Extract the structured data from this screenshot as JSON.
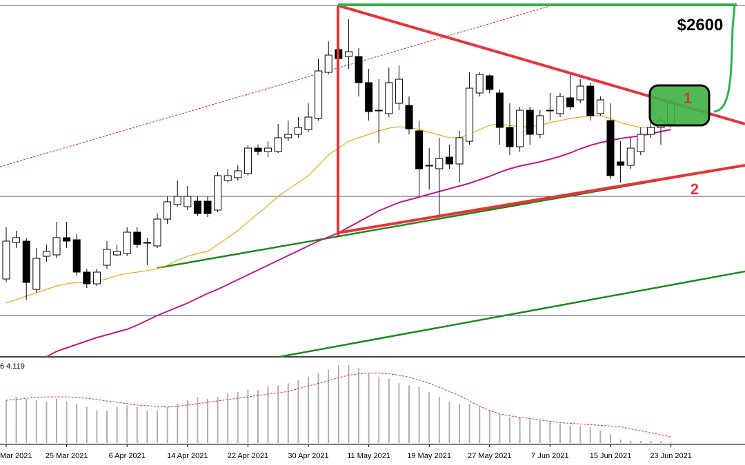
{
  "chart_data": {
    "type": "candlestick",
    "categories": [
      "Mar 2021",
      null,
      null,
      null,
      null,
      null,
      "25 Mar 2021",
      null,
      null,
      null,
      null,
      null,
      "6 Apr 2021",
      null,
      null,
      null,
      null,
      null,
      "14 Apr 2021",
      null,
      null,
      null,
      null,
      null,
      "22 Apr 2021",
      null,
      null,
      null,
      null,
      null,
      "30 Apr 2021",
      null,
      null,
      null,
      null,
      null,
      "11 May 2021",
      null,
      null,
      null,
      null,
      null,
      "19 May 2021",
      null,
      null,
      null,
      null,
      null,
      "27 May 2021",
      null,
      null,
      null,
      null,
      null,
      "7 Jun 2021",
      null,
      null,
      null,
      null,
      null,
      "15 Jun 2021",
      null,
      null,
      null,
      null,
      null,
      "23 Jun 2021"
    ],
    "open": [
      1130,
      1660,
      1680,
      980,
      1460,
      1480,
      1730,
      1700,
      1230,
      1060,
      1330,
      1480,
      1500,
      1810,
      1660,
      1610,
      2000,
      2210,
      2180,
      2260,
      2260,
      2130,
      2560,
      2600,
      2660,
      3030,
      2980,
      2980,
      3180,
      3230,
      3300,
      3460,
      4130,
      4460,
      4360,
      4360,
      3980,
      3580,
      3530,
      3680,
      3650,
      3280,
      2780,
      2730,
      2900,
      2800,
      3130,
      3830,
      4080,
      3830,
      3330,
      3050,
      3580,
      3230,
      3580,
      3530,
      3760,
      3730,
      3930,
      3530,
      3430,
      2830,
      2780,
      2980,
      3230,
      3330,
      3380
    ],
    "high": [
      1880,
      1830,
      1730,
      1580,
      1630,
      1960,
      1960,
      1780,
      1280,
      1280,
      1680,
      1630,
      1880,
      1880,
      1730,
      2080,
      2330,
      2560,
      2480,
      2330,
      2330,
      2680,
      2730,
      2780,
      3080,
      3080,
      3130,
      3380,
      3430,
      3480,
      3680,
      4330,
      4580,
      4680,
      4900,
      4480,
      4180,
      4030,
      4200,
      4230,
      3780,
      3430,
      3030,
      3180,
      3080,
      3280,
      4130,
      4130,
      4100,
      3880,
      3680,
      3630,
      3630,
      3580,
      3830,
      3830,
      4100,
      4030,
      3980,
      3780,
      3680,
      3130,
      3180,
      3330,
      3430,
      3480,
      3730
    ],
    "low": [
      1080,
      1580,
      830,
      930,
      1380,
      1430,
      1580,
      1180,
      1000,
      1030,
      1280,
      1460,
      1460,
      1580,
      1330,
      1580,
      1930,
      2180,
      2130,
      2050,
      2030,
      2100,
      2530,
      2560,
      2630,
      2930,
      2900,
      2960,
      3130,
      3180,
      3260,
      3430,
      4100,
      4100,
      4180,
      3780,
      3430,
      3100,
      3480,
      3580,
      3230,
      2330,
      2430,
      2060,
      2730,
      2530,
      3080,
      3780,
      3830,
      3080,
      2930,
      2980,
      3080,
      3180,
      3430,
      3480,
      3580,
      3680,
      3430,
      3500,
      2580,
      2530,
      2730,
      2930,
      3180,
      3080,
      3330
    ],
    "close": [
      1680,
      1730,
      1080,
      1430,
      1530,
      1730,
      1680,
      1230,
      1060,
      1230,
      1560,
      1530,
      1810,
      1630,
      1660,
      2000,
      2250,
      2330,
      2330,
      2080,
      2080,
      2630,
      2630,
      2700,
      3030,
      2980,
      3030,
      3180,
      3230,
      3330,
      3480,
      4150,
      4380,
      4330,
      4430,
      3980,
      3560,
      3580,
      3980,
      4030,
      3310,
      2730,
      2780,
      2880,
      2800,
      3180,
      3900,
      4100,
      3880,
      3330,
      3050,
      3580,
      3230,
      3500,
      3580,
      3780,
      3630,
      3930,
      3500,
      3730,
      2630,
      2780,
      3030,
      3230,
      3330,
      3430,
      3680
    ],
    "series": [
      {
        "color": "#f5a623",
        "values": [
          780,
          830,
          880,
          930,
          980,
          1030,
          1060,
          1080,
          1080,
          1100,
          1130,
          1180,
          1210,
          1230,
          1250,
          1280,
          1330,
          1400,
          1460,
          1500,
          1530,
          1630,
          1730,
          1830,
          1960,
          2080,
          2200,
          2330,
          2430,
          2530,
          2630,
          2780,
          2930,
          3030,
          3130,
          3180,
          3230,
          3280,
          3320,
          3340,
          3330,
          3300,
          3260,
          3220,
          3180,
          3180,
          3230,
          3300,
          3360,
          3380,
          3360,
          3340,
          3340,
          3360,
          3400,
          3430,
          3460,
          3480,
          3500,
          3500,
          3460,
          3400,
          3360,
          3330,
          3330,
          3350,
          3380
        ]
      },
      {
        "color": "#c71585",
        "values": [
          null,
          null,
          null,
          null,
          0,
          80,
          130,
          180,
          230,
          280,
          320,
          360,
          400,
          460,
          530,
          600,
          660,
          720,
          780,
          850,
          920,
          980,
          1050,
          1120,
          1190,
          1260,
          1330,
          1400,
          1470,
          1540,
          1610,
          1680,
          1740,
          1800,
          1880,
          1960,
          2040,
          2120,
          2180,
          2240,
          2280,
          2320,
          2360,
          2400,
          2440,
          2480,
          2520,
          2570,
          2620,
          2680,
          2730,
          2770,
          2800,
          2830,
          2870,
          2910,
          2960,
          3020,
          3070,
          3110,
          3140,
          3170,
          3190,
          3210,
          3240,
          3270,
          3300
        ]
      }
    ],
    "ylim": [
      0,
      5100
    ],
    "annotations": [
      "$2600",
      "1",
      "2"
    ],
    "indicator": {
      "label": "6 4.119",
      "ylim": [
        0,
        125
      ],
      "bar_color": "#b0b0b0",
      "signal_color": "#e03030",
      "values": [
        63,
        68,
        65,
        63,
        61,
        65,
        61,
        58,
        53,
        48,
        48,
        53,
        55,
        53,
        48,
        48,
        53,
        58,
        63,
        68,
        65,
        68,
        73,
        75,
        78,
        78,
        83,
        85,
        88,
        93,
        98,
        103,
        108,
        115,
        115,
        111,
        103,
        98,
        95,
        88,
        85,
        83,
        75,
        68,
        61,
        58,
        58,
        53,
        48,
        43,
        38,
        38,
        35,
        33,
        31,
        28,
        25,
        25,
        23,
        18,
        13,
        5,
        3,
        3,
        3,
        3,
        1
      ],
      "signal": [
        63,
        64,
        66,
        67,
        68,
        68,
        68,
        67,
        66,
        64,
        62,
        60,
        58,
        56,
        55,
        54,
        53,
        54,
        56,
        58,
        60,
        62,
        64,
        66,
        68,
        70,
        72,
        74,
        76,
        80,
        84,
        88,
        92,
        96,
        100,
        102,
        103,
        103,
        102,
        100,
        97,
        93,
        88,
        82,
        76,
        70,
        62,
        54,
        48,
        43,
        40,
        38,
        36,
        34,
        32,
        30,
        29,
        28,
        27,
        26,
        25,
        24,
        21,
        18,
        15,
        12,
        9
      ]
    }
  }
}
